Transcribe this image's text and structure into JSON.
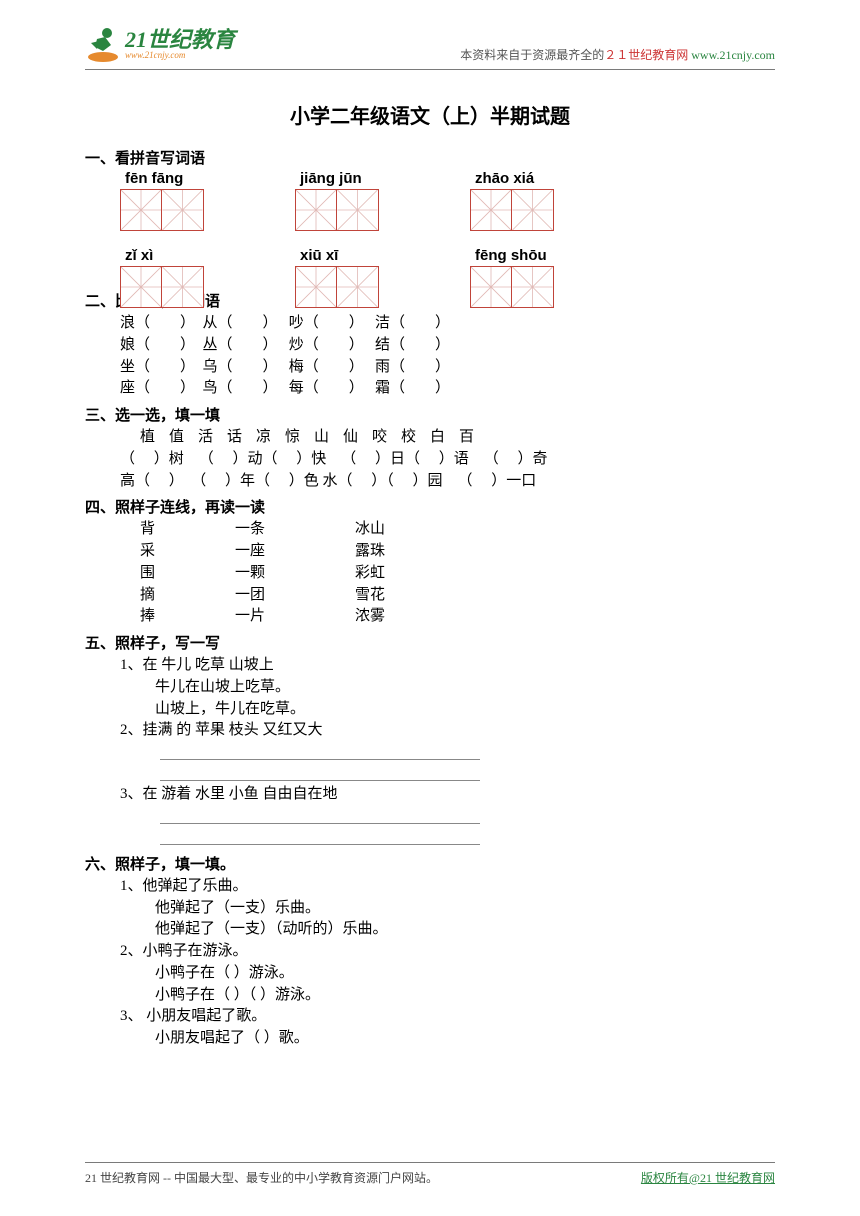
{
  "header": {
    "logo_main": "21世纪教育",
    "logo_sub": "www.21cnjy.com",
    "source_prefix": "本资料来自于资源最齐全的",
    "source_red": "２１世纪教育网",
    "source_link": " www.21cnjy.com"
  },
  "title": "小学二年级语文（上）半期试题",
  "q1": {
    "title": "一、看拼音写词语",
    "row1": [
      "fēn  fāng",
      "jiāng  jūn",
      "zhāo   xiá"
    ],
    "row2": [
      "zǐ  xì",
      "xiū   xī",
      "fēng shōu"
    ]
  },
  "q2": {
    "title": "二、比一比，组词语",
    "lines": [
      "浪（        ）  从（        ）   吵（        ）   洁（        ）",
      "娘（        ）  丛（        ）   炒（        ）   结（        ）",
      "坐（        ）  乌（        ）   梅（        ）   雨（        ）",
      "座（        ）  鸟（        ）   每（        ）   霜（        ）"
    ]
  },
  "q3": {
    "title": "三、选一选，填一填",
    "chars": "植值活话凉惊山仙咬校白百",
    "lines": [
      "（     ）树    （     ）动（     ）快    （     ）日（     ）语    （     ）奇",
      "高（     ）  （     ）年（     ）色 水（     ）（     ）园    （     ）一口"
    ]
  },
  "q4": {
    "title": "四、照样子连线，再读一读",
    "rows": [
      [
        "背",
        "一条",
        "冰山"
      ],
      [
        "采",
        "一座",
        "露珠"
      ],
      [
        "围",
        "一颗",
        "彩虹"
      ],
      [
        "摘",
        "一团",
        "雪花"
      ],
      [
        "捧",
        "一片",
        "浓雾"
      ]
    ]
  },
  "q5": {
    "title": "五、照样子，写一写",
    "items": [
      {
        "num": "1、在 牛儿 吃草 山坡上",
        "ex": [
          "牛儿在山坡上吃草。",
          "山坡上，牛儿在吃草。"
        ]
      },
      {
        "num": "2、挂满 的 苹果 枝头 又红又大"
      },
      {
        "num": "3、在 游着 水里 小鱼 自由自在地"
      }
    ]
  },
  "q6": {
    "title": "六、照样子，填一填。",
    "items": [
      {
        "num": "1、他弹起了乐曲。",
        "ex": [
          "他弹起了（一支）乐曲。",
          "他弹起了（一支）（动听的）乐曲。"
        ]
      },
      {
        "num": "2、小鸭子在游泳。",
        "ex": [
          "小鸭子在（        ）游泳。",
          "小鸭子在（        ）（           ）游泳。"
        ]
      },
      {
        "num": "3、  小朋友唱起了歌。",
        "ex": [
          "小朋友唱起了（       ）歌。"
        ]
      }
    ]
  },
  "footer": {
    "left": "21 世纪教育网 -- 中国最大型、最专业的中小学教育资源门户网站。",
    "right_prefix": "版权所有@",
    "right_link": "21 世纪教育网"
  },
  "colors": {
    "box_border": "#c0443a",
    "box_guide": "#e0b8b4",
    "green": "#2a8540",
    "red": "#cc3333",
    "orange": "#e68a2e"
  }
}
